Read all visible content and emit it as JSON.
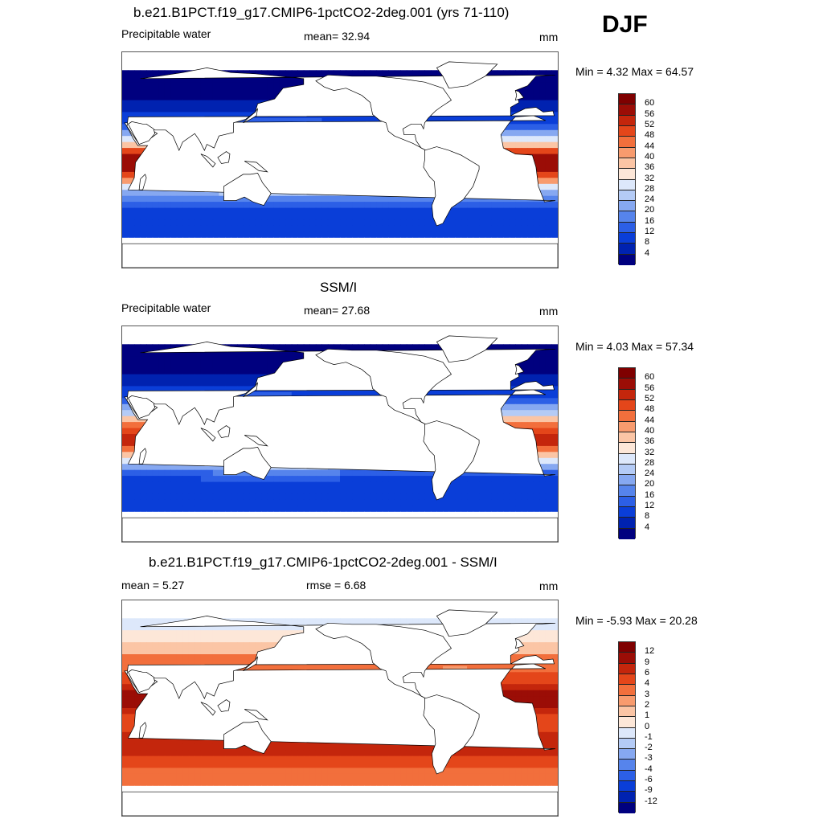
{
  "season": "DJF",
  "colors": {
    "full_field": [
      "#00007f",
      "#0022b0",
      "#0a3ed8",
      "#2c5fe6",
      "#5684ec",
      "#86a8f1",
      "#b4cbf6",
      "#dde8fb",
      "#fde7d8",
      "#fbc5a5",
      "#f89b6e",
      "#f26f3c",
      "#e4461a",
      "#c4260c",
      "#9b0d06",
      "#7f0000"
    ],
    "difference": [
      "#00007f",
      "#0022b0",
      "#0a3ed8",
      "#2c5fe6",
      "#5684ec",
      "#86a8f1",
      "#b4cbf6",
      "#dde8fb",
      "#fde7d8",
      "#fbc5a5",
      "#f89b6e",
      "#f26f3c",
      "#e4461a",
      "#c4260c",
      "#9b0d06",
      "#7f0000"
    ],
    "land": "#ffffff",
    "coast": "#000000"
  },
  "panels": [
    {
      "title": "b.e21.B1PCT.f19_g17.CMIP6-1pctCO2-2deg.001 (yrs 71-110)",
      "left_label": "Precipitable water",
      "center_label": "mean=  32.94",
      "units": "mm",
      "minmax": "Min =   4.32 Max =  64.57",
      "colorbar_labels": [
        "60",
        "56",
        "52",
        "48",
        "44",
        "40",
        "36",
        "32",
        "28",
        "24",
        "20",
        "16",
        "12",
        "8",
        "4"
      ]
    },
    {
      "title": "SSM/I",
      "left_label": "Precipitable water",
      "center_label": "mean=  27.68",
      "units": "mm",
      "minmax": "Min =   4.03 Max =  57.34",
      "colorbar_labels": [
        "60",
        "56",
        "52",
        "48",
        "44",
        "40",
        "36",
        "32",
        "28",
        "24",
        "20",
        "16",
        "12",
        "8",
        "4"
      ]
    },
    {
      "title": "b.e21.B1PCT.f19_g17.CMIP6-1pctCO2-2deg.001 - SSM/I",
      "left_label": "mean =   5.27",
      "center_label": "rmse =   6.68",
      "units": "mm",
      "minmax": "Min =  -5.93 Max =  20.28",
      "colorbar_labels": [
        "12",
        "9",
        "6",
        "4",
        "3",
        "2",
        "1",
        "0",
        "-1",
        "-2",
        "-3",
        "-4",
        "-6",
        "-9",
        "-12"
      ]
    }
  ]
}
